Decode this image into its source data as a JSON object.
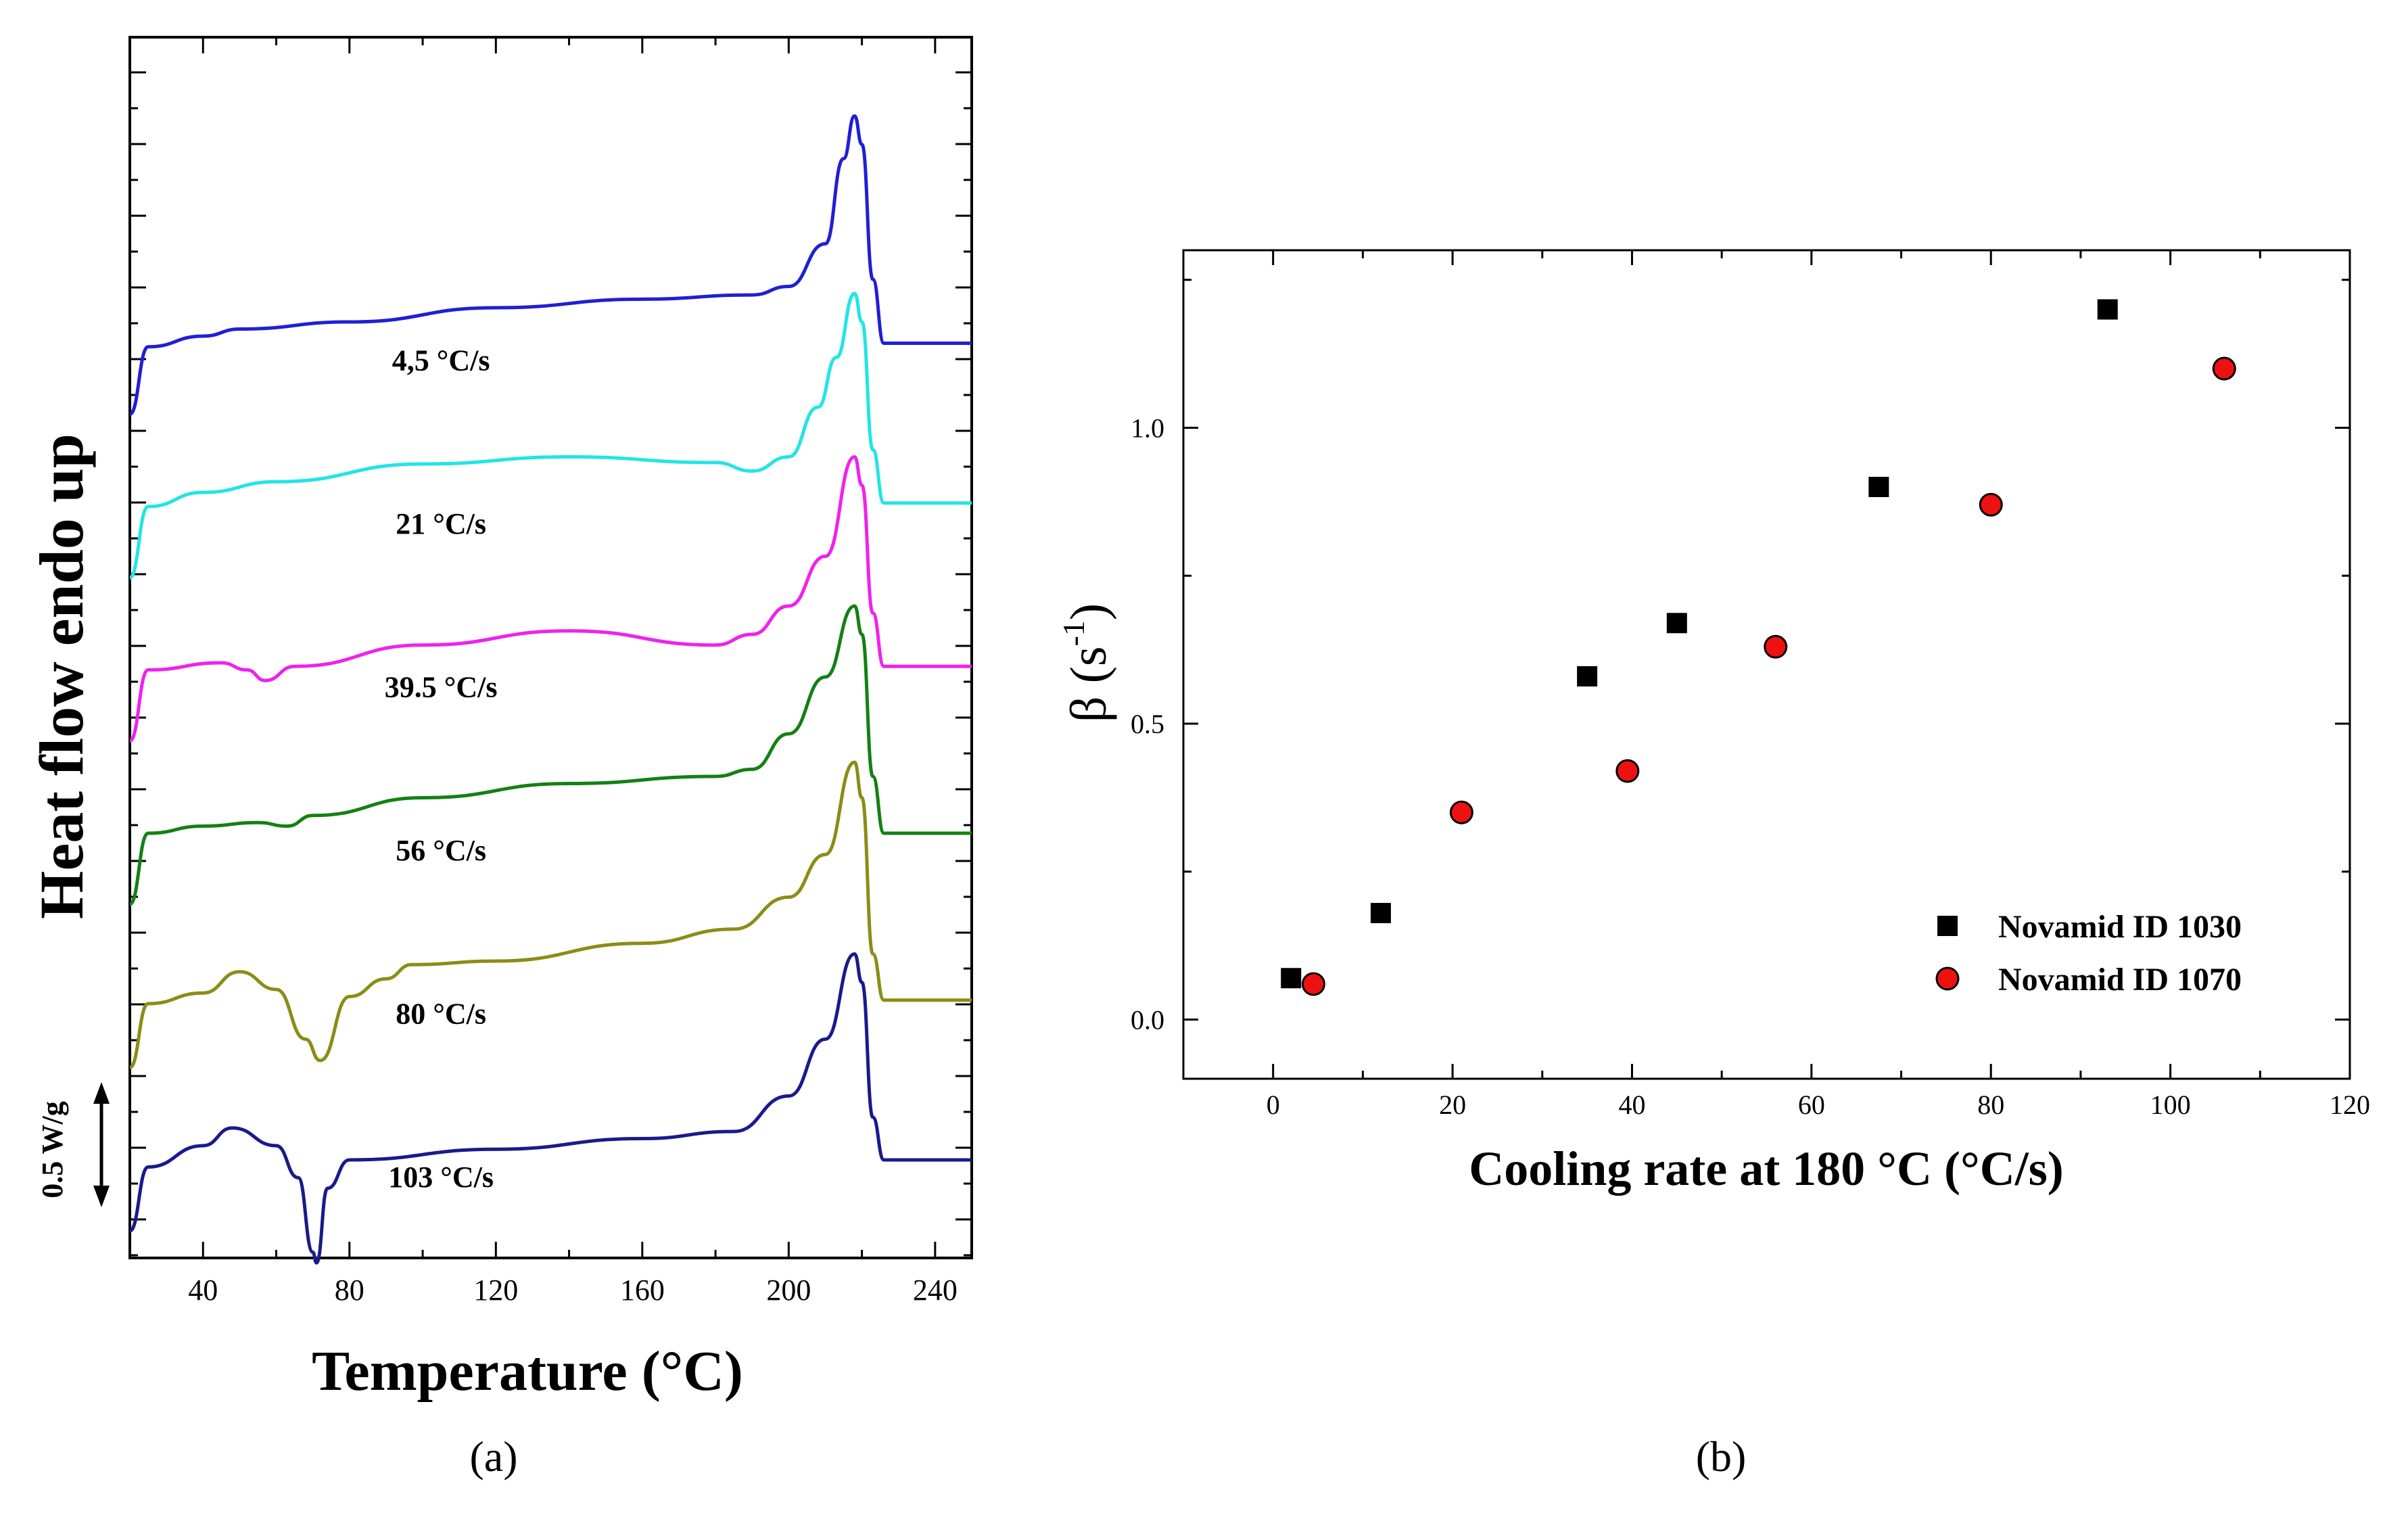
{
  "panel_a": {
    "caption": "(a)",
    "scale_bar_label": "0.5 W/g",
    "chart_data": {
      "type": "line",
      "title": "",
      "xlabel": "Temperature (°C)",
      "ylabel": "Heat flow endo up",
      "xlim": [
        20,
        250
      ],
      "xticks": [
        40,
        80,
        120,
        160,
        200,
        240
      ],
      "series": [
        {
          "name": "4,5 °C/s",
          "color": "#1f1fd6",
          "offset": 5.0,
          "x": [
            20,
            25,
            40,
            50,
            80,
            120,
            160,
            190,
            200,
            210,
            215,
            218,
            220,
            223,
            226,
            250
          ],
          "y": [
            0.0,
            0.95,
            1.1,
            1.2,
            1.3,
            1.5,
            1.62,
            1.68,
            1.8,
            2.4,
            3.6,
            4.2,
            3.8,
            1.9,
            1.0,
            1.0
          ]
        },
        {
          "name": "21 °C/s",
          "color": "#22e5e5",
          "offset": 4.0,
          "x": [
            20,
            25,
            40,
            60,
            100,
            140,
            180,
            190,
            200,
            208,
            213,
            218,
            220,
            223,
            226,
            250
          ],
          "y": [
            0.0,
            1.0,
            1.2,
            1.35,
            1.6,
            1.7,
            1.62,
            1.5,
            1.7,
            2.4,
            3.1,
            4.0,
            3.6,
            1.8,
            1.05,
            1.05
          ]
        },
        {
          "name": "39.5 °C/s",
          "color": "#ee22ee",
          "offset": 3.0,
          "x": [
            20,
            25,
            45,
            52,
            57,
            65,
            100,
            140,
            180,
            190,
            200,
            210,
            218,
            220,
            223,
            226,
            250
          ],
          "y": [
            0.0,
            1.0,
            1.1,
            1.0,
            0.85,
            1.05,
            1.35,
            1.55,
            1.35,
            1.5,
            1.9,
            2.6,
            4.0,
            3.6,
            1.8,
            1.05,
            1.05
          ]
        },
        {
          "name": "56 °C/s",
          "color": "#148014",
          "offset": 2.0,
          "x": [
            20,
            25,
            40,
            55,
            63,
            70,
            100,
            140,
            180,
            190,
            200,
            210,
            218,
            220,
            223,
            226,
            250
          ],
          "y": [
            0.0,
            1.0,
            1.1,
            1.15,
            1.1,
            1.25,
            1.5,
            1.7,
            1.8,
            1.9,
            2.4,
            3.2,
            4.2,
            3.8,
            1.8,
            1.0,
            1.0
          ]
        },
        {
          "name": "80 °C/s",
          "color": "#8c8c17",
          "offset": 1.0,
          "x": [
            20,
            25,
            40,
            50,
            60,
            68,
            72,
            80,
            90,
            97,
            120,
            160,
            185,
            200,
            210,
            218,
            220,
            223,
            226,
            250
          ],
          "y": [
            0.0,
            0.9,
            1.05,
            1.35,
            1.1,
            0.4,
            0.1,
            1.0,
            1.25,
            1.45,
            1.5,
            1.75,
            1.95,
            2.4,
            3.0,
            4.3,
            3.8,
            1.6,
            0.95,
            0.95
          ]
        },
        {
          "name": "103 °C/s",
          "color": "#1a1a8c",
          "offset": 0.0,
          "x": [
            20,
            25,
            40,
            48,
            60,
            66,
            70,
            71,
            74,
            80,
            120,
            160,
            185,
            200,
            210,
            218,
            220,
            223,
            226,
            250
          ],
          "y": [
            0.0,
            0.9,
            1.2,
            1.45,
            1.2,
            0.75,
            -0.3,
            -0.45,
            0.6,
            1.0,
            1.15,
            1.3,
            1.4,
            1.9,
            2.7,
            3.9,
            3.5,
            1.6,
            1.0,
            1.0
          ]
        }
      ],
      "grid": false,
      "legend": "none"
    }
  },
  "panel_b": {
    "caption": "(b)",
    "chart_data": {
      "type": "scatter",
      "title": "",
      "xlabel": "Cooling rate at 180 °C (°C/s)",
      "ylabel": "β (s-1)",
      "ylabel_base": "β (s",
      "ylabel_sup": "-1",
      "ylabel_close": ")",
      "xlim": [
        -10,
        120
      ],
      "ylim": [
        -0.1,
        1.3
      ],
      "xticks": [
        0,
        20,
        40,
        60,
        80,
        100,
        120
      ],
      "yticks": [
        0.0,
        0.5,
        1.0
      ],
      "ytick_labels": [
        "0.0",
        "0.5",
        "1.0"
      ],
      "legend": "bottom-right",
      "grid": false,
      "series": [
        {
          "name": "Novamid ID 1030",
          "marker": "square",
          "color": "#000000",
          "x": [
            2,
            12,
            35,
            45,
            67.5,
            93
          ],
          "y": [
            0.07,
            0.18,
            0.58,
            0.67,
            0.9,
            1.2
          ]
        },
        {
          "name": "Novamid ID 1070",
          "marker": "circle",
          "color": "#ee1111",
          "x": [
            4.5,
            21,
            39.5,
            56,
            80,
            106
          ],
          "y": [
            0.06,
            0.35,
            0.42,
            0.63,
            0.87,
            1.1
          ]
        }
      ]
    }
  }
}
